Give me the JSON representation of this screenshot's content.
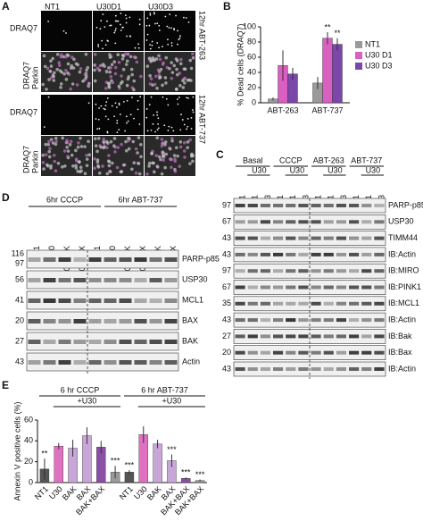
{
  "panels": {
    "a": "A",
    "b": "B",
    "c": "C",
    "d": "D",
    "e": "E"
  },
  "panel_a": {
    "columns": [
      "NT1",
      "U30D1",
      "U30D3"
    ],
    "stain1": "DRAQ7",
    "stain2": "Parkin",
    "conditions": [
      "12hr ABT-263",
      "12hr ABT-737"
    ]
  },
  "panel_c": {
    "groups": [
      "Basal",
      "CCCP",
      "ABT-263",
      "ABT-737"
    ],
    "sub": "U30",
    "lanes": [
      "NT1",
      "D1",
      "D3",
      "NT1",
      "D1",
      "D3",
      "NT1",
      "D1",
      "D3",
      "NT1",
      "D1",
      "D3"
    ],
    "rows": [
      {
        "mw": "97",
        "label": "PARP-p85"
      },
      {
        "mw": "67",
        "label": "USP30"
      },
      {
        "mw": "43",
        "label": "TIMM44"
      },
      {
        "mw": "43",
        "label": "IB:Actin"
      },
      {
        "mw": "97",
        "label": "IB:MIRO"
      },
      {
        "mw": "67",
        "label": "IB:PINK1"
      },
      {
        "mw": "35",
        "label": "IB:MCL1"
      },
      {
        "mw": "43",
        "label": "IB:Actin"
      },
      {
        "mw": "27",
        "label": "IB:Bak"
      },
      {
        "mw": "20",
        "label": "IB:Bax"
      },
      {
        "mw": "43",
        "label": "IB:Actin"
      }
    ]
  },
  "panel_d": {
    "groups": [
      "6hr CCCP",
      "6hr ABT-737"
    ],
    "lanes": [
      "NT1",
      "U30",
      "U30+BAK",
      "U30+BAX",
      "NT1",
      "U30",
      "U30+BAK",
      "U30+BAX",
      "BAK",
      "BAX"
    ],
    "rows": [
      {
        "mw": "116",
        "mw2": "97",
        "label": "PARP-p85"
      },
      {
        "mw": "56",
        "label": "USP30"
      },
      {
        "mw": "41",
        "label": "MCL1"
      },
      {
        "mw": "20",
        "label": "BAX"
      },
      {
        "mw": "27",
        "label": "BAK"
      },
      {
        "mw": "43",
        "label": "Actin"
      }
    ]
  },
  "chart_data": [
    {
      "type": "bar",
      "y_label": "% Dead cells (DRAQ7)",
      "categories": [
        "ABT-263",
        "ABT-737"
      ],
      "ylim": [
        0,
        100
      ],
      "yticks": [
        0,
        20,
        40,
        60,
        80,
        100
      ],
      "series": [
        {
          "name": "NT1",
          "color": "#9a9a9a",
          "values": [
            5,
            26
          ],
          "errors": [
            2,
            8
          ],
          "annotations": [
            null,
            null
          ]
        },
        {
          "name": "U30 D1",
          "color": "#d95fc0",
          "values": [
            49,
            85
          ],
          "errors": [
            20,
            8
          ],
          "annotations": [
            null,
            "**"
          ]
        },
        {
          "name": "U30 D3",
          "color": "#7b47a8",
          "values": [
            38,
            77
          ],
          "errors": [
            8,
            8
          ],
          "annotations": [
            null,
            "**"
          ]
        }
      ]
    },
    {
      "type": "bar",
      "y_label": "Annexin V positive cells (%)",
      "groups": [
        "6 hr CCCP",
        "6 hr ABT-737"
      ],
      "subgroup": "+U30",
      "categories": [
        "NT1",
        "U30",
        "BAK",
        "BAX",
        "BAK+BAX",
        null,
        "NT1",
        "U30",
        "BAK",
        "BAX",
        "BAK+BAX",
        "BAK+BAX"
      ],
      "values": [
        13,
        35,
        33,
        45,
        34,
        10,
        10,
        46,
        37,
        21,
        4,
        2
      ],
      "errors": [
        10,
        3,
        8,
        8,
        6,
        6,
        2,
        8,
        4,
        6,
        1,
        1
      ],
      "annotations": [
        "**",
        null,
        null,
        null,
        null,
        "***",
        "***",
        null,
        null,
        "***",
        "***",
        "***"
      ],
      "colors": [
        "#555555",
        "#e070c0",
        "#c9a6d8",
        "#c9a6d8",
        "#8b4fa6",
        "#9a9a9a",
        "#555555",
        "#e070c0",
        "#c9a6d8",
        "#c9a6d8",
        "#8b4fa6",
        "#9a9a9a"
      ],
      "ylim": [
        0,
        60
      ],
      "yticks": [
        0,
        20,
        40,
        60
      ]
    }
  ]
}
